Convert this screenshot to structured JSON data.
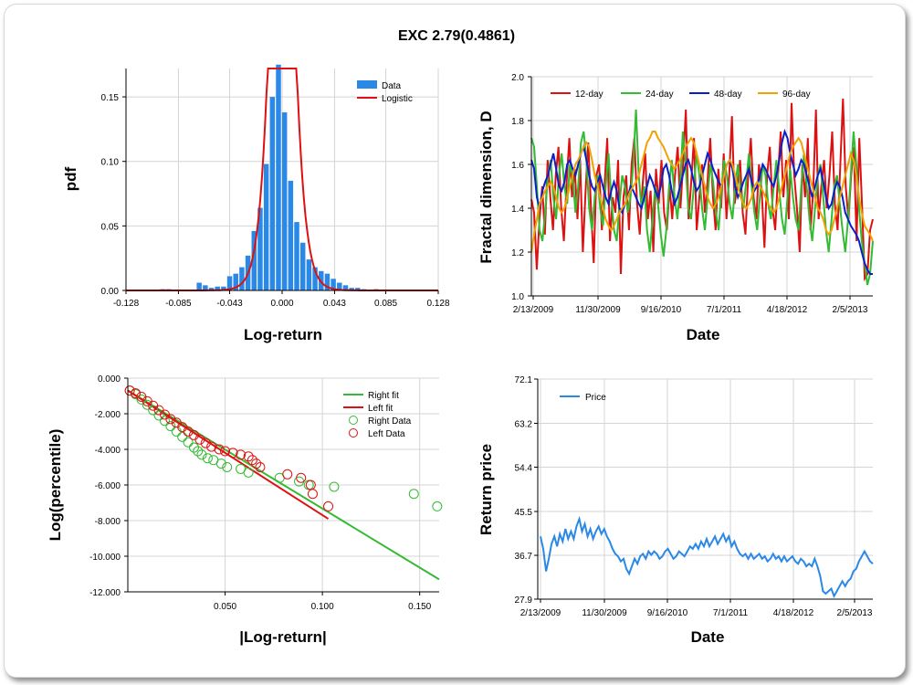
{
  "title": "EXC 2.79(0.4861)",
  "colors": {
    "bar": "#2a88e6",
    "red": "#dd1111",
    "green": "#33bb33",
    "blue": "#0a1fcc",
    "orange": "#f2a100",
    "price": "#2a88e6",
    "grid": "#d4d4d4"
  },
  "chart_data": [
    {
      "type": "bar",
      "xlabel": "Log-return",
      "ylabel": "pdf",
      "xticks": [
        "-0.128",
        "-0.085",
        "-0.043",
        "0.000",
        "0.043",
        "0.085",
        "0.128"
      ],
      "yticks": [
        "0.00",
        "0.05",
        "0.10",
        "0.15"
      ],
      "xlim": [
        -0.128,
        0.128
      ],
      "ylim": [
        0,
        0.172
      ],
      "legend": [
        "Data",
        "Logistic"
      ],
      "bins_x": [
        -0.098,
        -0.093,
        -0.088,
        -0.083,
        -0.078,
        -0.073,
        -0.068,
        -0.063,
        -0.058,
        -0.053,
        -0.048,
        -0.043,
        -0.038,
        -0.033,
        -0.028,
        -0.023,
        -0.018,
        -0.013,
        -0.008,
        -0.003,
        0.002,
        0.007,
        0.012,
        0.017,
        0.022,
        0.027,
        0.032,
        0.037,
        0.042,
        0.047,
        0.052,
        0.057,
        0.062,
        0.067,
        0.072,
        0.077
      ],
      "bins_y": [
        0.001,
        0.001,
        0.0,
        0.0,
        0.0,
        0.0,
        0.006,
        0.004,
        0.002,
        0.003,
        0.003,
        0.011,
        0.013,
        0.018,
        0.027,
        0.046,
        0.064,
        0.098,
        0.15,
        0.175,
        0.138,
        0.085,
        0.053,
        0.037,
        0.024,
        0.018,
        0.015,
        0.013,
        0.009,
        0.006,
        0.004,
        0.002,
        0.002,
        0.001,
        0.0,
        0.001
      ],
      "fit_mu": 0.0,
      "fit_s": 0.00575
    },
    {
      "type": "line",
      "xlabel": "Date",
      "ylabel": "Fractal dimension, D",
      "xticks": [
        "2/13/2009",
        "11/30/2009",
        "9/16/2010",
        "7/1/2011",
        "4/18/2012",
        "2/5/2013"
      ],
      "yticks": [
        "1.0",
        "1.2",
        "1.4",
        "1.6",
        "1.8",
        "2.0"
      ],
      "ylim": [
        1.0,
        2.0
      ],
      "series": [
        {
          "name": "12-day",
          "color": "red",
          "values": [
            1.44,
            1.38,
            1.12,
            1.35,
            1.5,
            1.28,
            1.62,
            1.45,
            1.3,
            1.55,
            1.68,
            1.4,
            1.25,
            1.52,
            1.72,
            1.45,
            1.58,
            1.35,
            1.62,
            1.2,
            1.48,
            1.7,
            1.4,
            1.15,
            1.55,
            1.6,
            1.3,
            1.5,
            1.72,
            1.25,
            1.45,
            1.38,
            1.62,
            1.1,
            1.45,
            1.55,
            1.3,
            1.6,
            1.72,
            1.42,
            1.28,
            1.5,
            1.65,
            1.35,
            1.48,
            1.2,
            1.58,
            1.42,
            1.62,
            1.38,
            1.3,
            1.5,
            1.35,
            1.55,
            1.68,
            1.4,
            1.6,
            1.85,
            1.35,
            1.52,
            1.72,
            1.3,
            1.45,
            1.6,
            1.38,
            1.52,
            1.72,
            1.45,
            1.3,
            1.58,
            1.4,
            1.65,
            1.35,
            1.55,
            1.82,
            1.42,
            1.5,
            1.62,
            1.38,
            1.28,
            1.55,
            1.72,
            1.45,
            1.35,
            1.6,
            1.48,
            1.22,
            1.55,
            1.68,
            1.4,
            1.3,
            1.55,
            1.75,
            1.45,
            1.62,
            1.35,
            1.88,
            1.55,
            1.4,
            1.2,
            1.6,
            1.45,
            1.72,
            1.3,
            1.48,
            1.85,
            1.35,
            1.5,
            1.62,
            1.4,
            1.55,
            1.75,
            1.42,
            1.3,
            1.6,
            1.9,
            1.5,
            1.35,
            1.55,
            1.68,
            1.25,
            1.72,
            1.42,
            1.08,
            1.1,
            1.3,
            1.35
          ]
        },
        {
          "name": "24-day",
          "color": "green",
          "values": [
            1.72,
            1.68,
            1.5,
            1.3,
            1.25,
            1.38,
            1.55,
            1.62,
            1.45,
            1.35,
            1.55,
            1.65,
            1.5,
            1.42,
            1.6,
            1.55,
            1.38,
            1.5,
            1.7,
            1.75,
            1.62,
            1.4,
            1.3,
            1.45,
            1.55,
            1.4,
            1.32,
            1.5,
            1.65,
            1.45,
            1.3,
            1.25,
            1.42,
            1.55,
            1.5,
            1.38,
            1.45,
            1.6,
            1.85,
            1.55,
            1.4,
            1.5,
            1.3,
            1.2,
            1.35,
            1.5,
            1.42,
            1.28,
            1.18,
            1.3,
            1.5,
            1.62,
            1.45,
            1.35,
            1.5,
            1.75,
            1.6,
            1.4,
            1.35,
            1.5,
            1.65,
            1.55,
            1.4,
            1.3,
            1.45,
            1.6,
            1.52,
            1.38,
            1.3,
            1.48,
            1.62,
            1.55,
            1.42,
            1.35,
            1.5,
            1.6,
            1.48,
            1.4,
            1.52,
            1.65,
            1.5,
            1.38,
            1.3,
            1.45,
            1.6,
            1.55,
            1.42,
            1.35,
            1.5,
            1.62,
            1.48,
            1.35,
            1.28,
            1.45,
            1.58,
            1.45,
            1.35,
            1.3,
            1.5,
            1.65,
            1.5,
            1.35,
            1.25,
            1.4,
            1.55,
            1.6,
            1.45,
            1.3,
            1.2,
            1.35,
            1.5,
            1.55,
            1.42,
            1.3,
            1.2,
            1.35,
            1.55,
            1.75,
            1.6,
            1.4,
            1.25,
            1.15,
            1.05,
            1.1,
            1.25
          ]
        },
        {
          "name": "48-day",
          "color": "blue",
          "values": [
            1.62,
            1.58,
            1.45,
            1.4,
            1.48,
            1.52,
            1.55,
            1.6,
            1.65,
            1.58,
            1.5,
            1.48,
            1.52,
            1.6,
            1.62,
            1.58,
            1.55,
            1.6,
            1.65,
            1.68,
            1.62,
            1.55,
            1.5,
            1.48,
            1.52,
            1.55,
            1.5,
            1.45,
            1.42,
            1.48,
            1.52,
            1.48,
            1.4,
            1.38,
            1.42,
            1.45,
            1.5,
            1.48,
            1.45,
            1.42,
            1.4,
            1.45,
            1.5,
            1.55,
            1.52,
            1.48,
            1.45,
            1.5,
            1.58,
            1.6,
            1.55,
            1.48,
            1.42,
            1.45,
            1.5,
            1.55,
            1.6,
            1.62,
            1.58,
            1.52,
            1.48,
            1.5,
            1.55,
            1.6,
            1.65,
            1.62,
            1.58,
            1.55,
            1.52,
            1.5,
            1.55,
            1.6,
            1.62,
            1.58,
            1.5,
            1.45,
            1.48,
            1.52,
            1.55,
            1.58,
            1.52,
            1.48,
            1.5,
            1.55,
            1.6,
            1.58,
            1.55,
            1.52,
            1.5,
            1.55,
            1.62,
            1.7,
            1.75,
            1.72,
            1.65,
            1.6,
            1.55,
            1.58,
            1.62,
            1.6,
            1.55,
            1.5,
            1.45,
            1.5,
            1.55,
            1.58,
            1.52,
            1.45,
            1.4,
            1.42,
            1.48,
            1.52,
            1.5,
            1.45,
            1.38,
            1.35,
            1.32,
            1.3,
            1.28,
            1.25,
            1.2,
            1.15,
            1.12,
            1.1,
            1.1
          ]
        },
        {
          "name": "96-day",
          "color": "orange",
          "values": [
            1.2,
            1.28,
            1.35,
            1.42,
            1.45,
            1.48,
            1.5,
            1.52,
            1.5,
            1.45,
            1.4,
            1.38,
            1.4,
            1.45,
            1.5,
            1.55,
            1.6,
            1.62,
            1.65,
            1.68,
            1.7,
            1.68,
            1.62,
            1.55,
            1.5,
            1.45,
            1.4,
            1.35,
            1.32,
            1.3,
            1.32,
            1.35,
            1.38,
            1.4,
            1.42,
            1.45,
            1.48,
            1.5,
            1.52,
            1.55,
            1.6,
            1.65,
            1.7,
            1.72,
            1.75,
            1.75,
            1.72,
            1.7,
            1.68,
            1.65,
            1.62,
            1.6,
            1.58,
            1.6,
            1.62,
            1.65,
            1.68,
            1.7,
            1.72,
            1.7,
            1.65,
            1.6,
            1.55,
            1.5,
            1.45,
            1.42,
            1.4,
            1.42,
            1.45,
            1.5,
            1.55,
            1.6,
            1.62,
            1.6,
            1.55,
            1.5,
            1.45,
            1.42,
            1.4,
            1.42,
            1.45,
            1.5,
            1.52,
            1.5,
            1.48,
            1.45,
            1.42,
            1.4,
            1.38,
            1.4,
            1.45,
            1.5,
            1.55,
            1.6,
            1.65,
            1.68,
            1.7,
            1.72,
            1.7,
            1.65,
            1.6,
            1.55,
            1.5,
            1.45,
            1.4,
            1.38,
            1.35,
            1.3,
            1.28,
            1.3,
            1.35,
            1.4,
            1.45,
            1.5,
            1.55,
            1.6,
            1.65,
            1.62,
            1.55,
            1.45,
            1.38,
            1.32,
            1.3,
            1.28,
            1.25
          ]
        }
      ]
    },
    {
      "type": "scatter",
      "xlabel": "|Log-return|",
      "ylabel": "Log(percentile)",
      "xticks": [
        "0.050",
        "0.100",
        "0.150"
      ],
      "yticks": [
        "0.000",
        "-2.000",
        "-4.000",
        "-6.000",
        "-8.000",
        "-10.000",
        "-12.000"
      ],
      "xlim": [
        0,
        0.16
      ],
      "ylim": [
        -12,
        0
      ],
      "legend": [
        "Right fit",
        "Left fit",
        "Right Data",
        "Left Data"
      ],
      "right_fit": [
        [
          0.0,
          -0.7
        ],
        [
          0.16,
          -11.3
        ]
      ],
      "left_fit": [
        [
          0.0,
          -0.7
        ],
        [
          0.103,
          -7.9
        ]
      ],
      "right_data": [
        [
          0.001,
          -0.7
        ],
        [
          0.004,
          -0.9
        ],
        [
          0.007,
          -1.2
        ],
        [
          0.01,
          -1.5
        ],
        [
          0.013,
          -1.8
        ],
        [
          0.016,
          -2.1
        ],
        [
          0.019,
          -2.4
        ],
        [
          0.022,
          -2.7
        ],
        [
          0.025,
          -3.0
        ],
        [
          0.028,
          -3.3
        ],
        [
          0.031,
          -3.6
        ],
        [
          0.034,
          -3.9
        ],
        [
          0.036,
          -4.1
        ],
        [
          0.038,
          -4.3
        ],
        [
          0.041,
          -4.5
        ],
        [
          0.044,
          -4.6
        ],
        [
          0.048,
          -4.8
        ],
        [
          0.051,
          -5.0
        ],
        [
          0.058,
          -5.1
        ],
        [
          0.062,
          -5.3
        ],
        [
          0.078,
          -5.6
        ],
        [
          0.088,
          -5.8
        ],
        [
          0.093,
          -6.0
        ],
        [
          0.106,
          -6.1
        ],
        [
          0.147,
          -6.5
        ],
        [
          0.159,
          -7.2
        ]
      ],
      "left_data": [
        [
          0.001,
          -0.7
        ],
        [
          0.004,
          -0.85
        ],
        [
          0.007,
          -1.05
        ],
        [
          0.01,
          -1.3
        ],
        [
          0.013,
          -1.55
        ],
        [
          0.016,
          -1.8
        ],
        [
          0.019,
          -2.05
        ],
        [
          0.022,
          -2.3
        ],
        [
          0.025,
          -2.5
        ],
        [
          0.028,
          -2.75
        ],
        [
          0.031,
          -3.0
        ],
        [
          0.034,
          -3.2
        ],
        [
          0.037,
          -3.45
        ],
        [
          0.04,
          -3.65
        ],
        [
          0.043,
          -3.85
        ],
        [
          0.047,
          -4.0
        ],
        [
          0.05,
          -4.1
        ],
        [
          0.054,
          -4.2
        ],
        [
          0.058,
          -4.3
        ],
        [
          0.062,
          -4.4
        ],
        [
          0.064,
          -4.6
        ],
        [
          0.066,
          -4.8
        ],
        [
          0.068,
          -5.0
        ],
        [
          0.082,
          -5.4
        ],
        [
          0.089,
          -5.6
        ],
        [
          0.094,
          -6.0
        ],
        [
          0.095,
          -6.5
        ],
        [
          0.103,
          -7.2
        ]
      ]
    },
    {
      "type": "line",
      "xlabel": "Date",
      "ylabel": "Return price",
      "xticks": [
        "2/13/2009",
        "11/30/2009",
        "9/16/2010",
        "7/1/2011",
        "4/18/2012",
        "2/5/2013"
      ],
      "yticks": [
        "27.9",
        "36.7",
        "45.5",
        "54.4",
        "63.2",
        "72.1"
      ],
      "ylim": [
        27.9,
        72.1
      ],
      "legend": [
        "Price"
      ],
      "series": [
        {
          "name": "Price",
          "color": "price",
          "values": [
            40.5,
            38.0,
            33.5,
            36.0,
            39.0,
            40.5,
            38.5,
            41.0,
            39.5,
            42.0,
            40.0,
            41.5,
            40.0,
            42.5,
            44.0,
            41.5,
            43.0,
            40.5,
            42.0,
            40.0,
            41.5,
            42.5,
            41.0,
            42.0,
            40.5,
            39.5,
            38.0,
            37.0,
            36.5,
            35.5,
            36.0,
            34.0,
            33.0,
            34.5,
            36.0,
            35.0,
            36.5,
            37.0,
            36.0,
            37.5,
            36.8,
            37.5,
            37.0,
            36.0,
            36.5,
            37.5,
            38.0,
            37.0,
            36.0,
            36.5,
            37.5,
            37.0,
            36.5,
            37.5,
            38.5,
            38.0,
            39.0,
            38.0,
            39.5,
            38.5,
            40.0,
            38.5,
            39.5,
            40.5,
            39.0,
            40.0,
            41.0,
            39.5,
            40.5,
            38.5,
            39.5,
            38.0,
            37.0,
            36.5,
            37.0,
            36.0,
            37.0,
            36.0,
            36.5,
            37.0,
            36.0,
            36.5,
            35.5,
            36.0,
            37.0,
            36.0,
            36.5,
            35.5,
            36.5,
            35.5,
            36.0,
            36.5,
            35.5,
            35.0,
            36.0,
            35.5,
            34.5,
            35.0,
            34.5,
            36.0,
            34.5,
            32.5,
            29.5,
            29.0,
            29.5,
            30.0,
            28.5,
            29.5,
            30.5,
            31.5,
            30.5,
            31.5,
            32.0,
            33.5,
            34.0,
            35.5,
            36.5,
            37.5,
            36.5,
            35.5,
            35.0
          ]
        }
      ]
    }
  ]
}
